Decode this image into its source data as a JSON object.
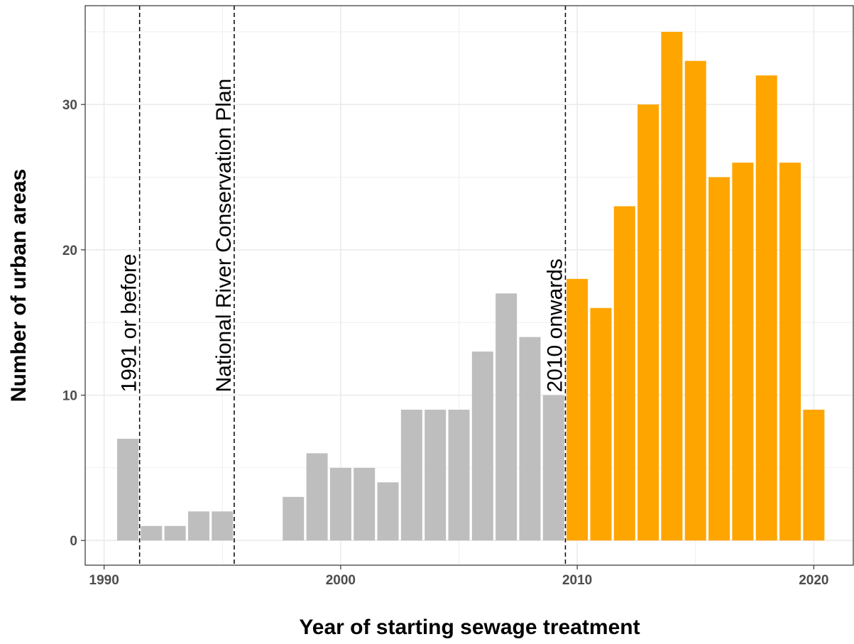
{
  "chart_data": {
    "type": "bar",
    "title": "",
    "xlabel": "Year of starting sewage treatment",
    "ylabel": "Number of urban areas",
    "xlim": [
      1989.2,
      2021.7
    ],
    "ylim": [
      -1.7,
      36.8
    ],
    "xticks": [
      1990,
      2000,
      2010,
      2020
    ],
    "yticks": [
      0,
      10,
      20,
      30
    ],
    "grid": true,
    "legend": "none",
    "colors": {
      "before_2010": "#bebebe",
      "from_2010": "#ffa500",
      "grid": "#ebebeb",
      "frame": "#333333"
    },
    "series": [
      {
        "x": [
          1991,
          1992,
          1993,
          1994,
          1995,
          1998,
          1999,
          2000,
          2001,
          2002,
          2003,
          2004,
          2005,
          2006,
          2007,
          2008,
          2009
        ],
        "values": [
          7,
          1,
          1,
          2,
          2,
          3,
          6,
          5,
          5,
          4,
          9,
          9,
          9,
          13,
          17,
          14,
          10
        ],
        "color": "#bebebe"
      },
      {
        "x": [
          2010,
          2011,
          2012,
          2013,
          2014,
          2015,
          2016,
          2017,
          2018,
          2019,
          2020
        ],
        "values": [
          18,
          16,
          23,
          30,
          35,
          33,
          25,
          26,
          32,
          26,
          9
        ],
        "color": "#ffa500"
      }
    ],
    "vlines": [
      {
        "x": 1991.5,
        "label": "1991 or before"
      },
      {
        "x": 1995.5,
        "label": "National River Conservation Plan"
      },
      {
        "x": 2009.5,
        "label": "2010 onwards"
      }
    ]
  }
}
